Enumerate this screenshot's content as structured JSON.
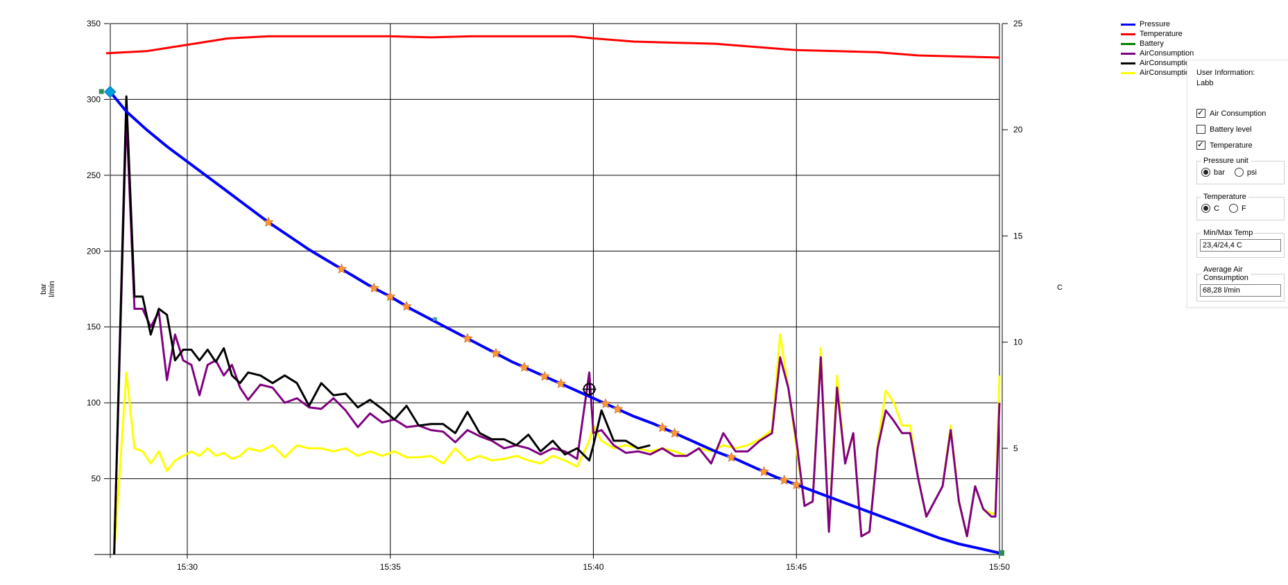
{
  "axes": {
    "left_label_line1": "bar",
    "left_label_line2": "l/min",
    "right_label": "C",
    "x_ticks": [
      "15:30",
      "15:35",
      "15:40",
      "15:45",
      "15:50"
    ]
  },
  "legend": [
    {
      "label": "Pressure",
      "color": "#0000ff"
    },
    {
      "label": "Temperature",
      "color": "#ff0000"
    },
    {
      "label": "Battery",
      "color": "#008000"
    },
    {
      "label": "AirConsumption",
      "color": "#800080"
    },
    {
      "label": "AirConsumption",
      "color": "#000000"
    },
    {
      "label": "AirConsumption",
      "color": "#ffff00"
    }
  ],
  "panel": {
    "user_info_label": "User Information:",
    "user_info_value": "Labb",
    "chk_air": "Air Consumption",
    "chk_air_checked": true,
    "chk_battery": "Battery level",
    "chk_battery_checked": false,
    "chk_temp": "Temperature",
    "chk_temp_checked": true,
    "pressure_unit_title": "Pressure unit",
    "pressure_bar": "bar",
    "pressure_psi": "psi",
    "temperature_title": "Temperature",
    "temp_c": "C",
    "temp_f": "F",
    "minmax_title": "Min/Max Temp",
    "minmax_value": "23,4/24,4 C",
    "avg_title_line1": "Average Air",
    "avg_title_line2": "Consumption",
    "avg_value": "68,28 l/min"
  },
  "chart_data": {
    "type": "line",
    "x_unit": "minutes",
    "xlim": [
      "15:28",
      "15:50"
    ],
    "y_left": {
      "ticks": [
        50,
        100,
        150,
        200,
        250,
        300,
        350
      ],
      "lim": [
        0,
        350
      ],
      "label": "bar l/min"
    },
    "y_right": {
      "ticks": [
        5,
        10,
        15,
        20,
        25
      ],
      "lim": [
        0,
        25
      ],
      "label": "C"
    },
    "grid": true,
    "legend_position": "top-right",
    "series": [
      {
        "name": "Pressure",
        "axis": "left",
        "color": "#0000ff",
        "x": [
          28.1,
          28.5,
          29.0,
          29.5,
          30.0,
          30.5,
          31.0,
          31.5,
          32.0,
          32.5,
          33.0,
          33.5,
          34.0,
          34.5,
          35.0,
          35.5,
          36.0,
          36.5,
          37.0,
          37.5,
          38.0,
          38.5,
          39.0,
          39.5,
          40.0,
          40.5,
          41.0,
          41.5,
          42.0,
          42.5,
          43.0,
          43.5,
          44.0,
          44.5,
          45.0,
          45.5,
          46.0,
          46.5,
          47.0,
          47.5,
          48.0,
          48.5,
          49.0,
          49.5,
          50.0
        ],
        "y": [
          305,
          292,
          280,
          269,
          259,
          249,
          239,
          229,
          219,
          210,
          201,
          193,
          185,
          177,
          170,
          162,
          155,
          148,
          141,
          134,
          127,
          121,
          115,
          109,
          103,
          97,
          91,
          86,
          80,
          74,
          68,
          63,
          57,
          51,
          46,
          41,
          36,
          31,
          26,
          21,
          16,
          11,
          7,
          4,
          1
        ]
      },
      {
        "name": "Temperature",
        "axis": "right",
        "color": "#ff0000",
        "x": [
          28.0,
          29.0,
          30.0,
          31.0,
          32.0,
          33.0,
          34.0,
          35.0,
          36.0,
          37.0,
          38.0,
          39.0,
          39.5,
          40.0,
          41.0,
          42.0,
          43.0,
          44.0,
          45.0,
          46.0,
          47.0,
          48.0,
          49.0,
          50.0
        ],
        "y": [
          23.6,
          23.7,
          24.0,
          24.3,
          24.4,
          24.4,
          24.4,
          24.4,
          24.35,
          24.4,
          24.4,
          24.4,
          24.4,
          24.3,
          24.15,
          24.1,
          24.05,
          23.9,
          23.75,
          23.7,
          23.65,
          23.5,
          23.45,
          23.4
        ]
      },
      {
        "name": "AirConsumption",
        "axis": "left",
        "color": "#800080",
        "x": [
          28.2,
          28.5,
          28.7,
          28.9,
          29.1,
          29.3,
          29.5,
          29.7,
          29.9,
          30.1,
          30.3,
          30.5,
          30.7,
          30.9,
          31.1,
          31.3,
          31.5,
          31.8,
          32.1,
          32.4,
          32.7,
          33.0,
          33.3,
          33.6,
          33.9,
          34.2,
          34.5,
          34.8,
          35.1,
          35.4,
          35.7,
          36.0,
          36.3,
          36.6,
          36.9,
          37.2,
          37.5,
          37.8,
          38.1,
          38.4,
          38.7,
          39.0,
          39.3,
          39.6,
          39.9,
          40.0,
          40.2,
          40.5,
          40.8,
          41.1,
          41.4,
          41.7,
          42.0,
          42.3,
          42.6,
          42.9,
          43.2,
          43.5,
          43.8,
          44.1,
          44.4,
          44.6,
          44.8,
          45.0,
          45.2,
          45.4,
          45.6,
          45.8,
          46.0,
          46.2,
          46.4,
          46.6,
          46.8,
          47.0,
          47.2,
          47.4,
          47.6,
          47.8,
          48.0,
          48.2,
          48.4,
          48.6,
          48.8,
          49.0,
          49.2,
          49.4,
          49.6,
          49.8,
          49.9,
          50.0
        ],
        "y": [
          0,
          290,
          162,
          162,
          150,
          160,
          115,
          145,
          128,
          125,
          105,
          125,
          128,
          118,
          125,
          110,
          102,
          112,
          110,
          100,
          103,
          97,
          96,
          103,
          95,
          84,
          93,
          87,
          89,
          84,
          85,
          82,
          81,
          74,
          82,
          78,
          75,
          70,
          72,
          70,
          66,
          70,
          68,
          63,
          120,
          80,
          82,
          72,
          67,
          68,
          66,
          70,
          65,
          65,
          70,
          60,
          80,
          68,
          68,
          75,
          80,
          130,
          110,
          75,
          32,
          35,
          130,
          15,
          110,
          60,
          80,
          12,
          15,
          70,
          95,
          88,
          80,
          80,
          50,
          25,
          35,
          45,
          82,
          35,
          12,
          45,
          30,
          25,
          25,
          100
        ]
      },
      {
        "name": "AirConsumption",
        "axis": "left",
        "color": "#000000",
        "x": [
          28.2,
          28.5,
          28.7,
          28.9,
          29.1,
          29.3,
          29.5,
          29.7,
          29.9,
          30.1,
          30.3,
          30.5,
          30.7,
          30.9,
          31.1,
          31.3,
          31.5,
          31.8,
          32.1,
          32.4,
          32.7,
          33.0,
          33.3,
          33.6,
          33.9,
          34.2,
          34.5,
          34.8,
          35.1,
          35.4,
          35.7,
          36.0,
          36.3,
          36.6,
          36.9,
          37.2,
          37.5,
          37.8,
          38.1,
          38.4,
          38.7,
          39.0,
          39.3,
          39.6,
          39.9,
          40.0,
          40.2,
          40.5,
          40.8,
          41.1,
          41.4
        ],
        "y": [
          0,
          302,
          170,
          170,
          145,
          162,
          158,
          128,
          135,
          135,
          128,
          135,
          127,
          136,
          118,
          113,
          120,
          118,
          113,
          118,
          113,
          98,
          113,
          105,
          106,
          97,
          102,
          96,
          89,
          98,
          85,
          86,
          86,
          80,
          94,
          80,
          76,
          76,
          72,
          79,
          68,
          75,
          66,
          70,
          62,
          72,
          95,
          75,
          75,
          70,
          72
        ]
      },
      {
        "name": "AirConsumption",
        "axis": "left",
        "color": "#ffff00",
        "x": [
          28.2,
          28.5,
          28.7,
          28.9,
          29.1,
          29.3,
          29.5,
          29.7,
          29.9,
          30.1,
          30.3,
          30.5,
          30.7,
          30.9,
          31.1,
          31.3,
          31.5,
          31.8,
          32.1,
          32.4,
          32.7,
          33.0,
          33.3,
          33.6,
          33.9,
          34.2,
          34.5,
          34.8,
          35.1,
          35.4,
          35.7,
          36.0,
          36.3,
          36.6,
          36.9,
          37.2,
          37.5,
          37.8,
          38.1,
          38.4,
          38.7,
          39.0,
          39.3,
          39.6,
          39.9,
          40.0,
          40.2,
          40.5,
          40.8,
          41.1,
          41.4,
          41.7,
          42.0,
          42.3,
          42.6,
          42.9,
          43.2,
          43.5,
          43.8,
          44.1,
          44.4,
          44.6,
          44.8,
          45.0,
          45.2,
          45.4,
          45.6,
          45.8,
          46.0,
          46.2,
          46.4,
          46.6,
          46.8,
          47.0,
          47.2,
          47.4,
          47.6,
          47.8,
          48.0,
          48.2,
          48.4,
          48.6,
          48.8,
          49.0,
          49.2,
          49.4,
          49.6,
          49.8,
          49.9,
          50.0
        ],
        "y": [
          0,
          120,
          70,
          68,
          60,
          68,
          55,
          62,
          65,
          68,
          65,
          70,
          65,
          67,
          63,
          65,
          70,
          68,
          72,
          64,
          72,
          70,
          70,
          68,
          70,
          65,
          68,
          65,
          68,
          64,
          64,
          65,
          60,
          70,
          62,
          65,
          62,
          63,
          65,
          62,
          60,
          65,
          62,
          58,
          75,
          85,
          75,
          70,
          72,
          70,
          68,
          70,
          68,
          65,
          70,
          68,
          72,
          70,
          72,
          76,
          82,
          145,
          110,
          70,
          32,
          35,
          136,
          15,
          118,
          60,
          80,
          12,
          15,
          72,
          108,
          100,
          85,
          85,
          50,
          25,
          35,
          45,
          85,
          35,
          12,
          45,
          30,
          27,
          27,
          118
        ]
      }
    ],
    "markers": {
      "pressure_stars_x": [
        32.0,
        33.8,
        34.6,
        35.0,
        35.4,
        36.9,
        37.6,
        38.3,
        38.8,
        39.2,
        40.3,
        40.6,
        41.7,
        42.0,
        43.4,
        44.2,
        44.7,
        45.0
      ]
    }
  }
}
